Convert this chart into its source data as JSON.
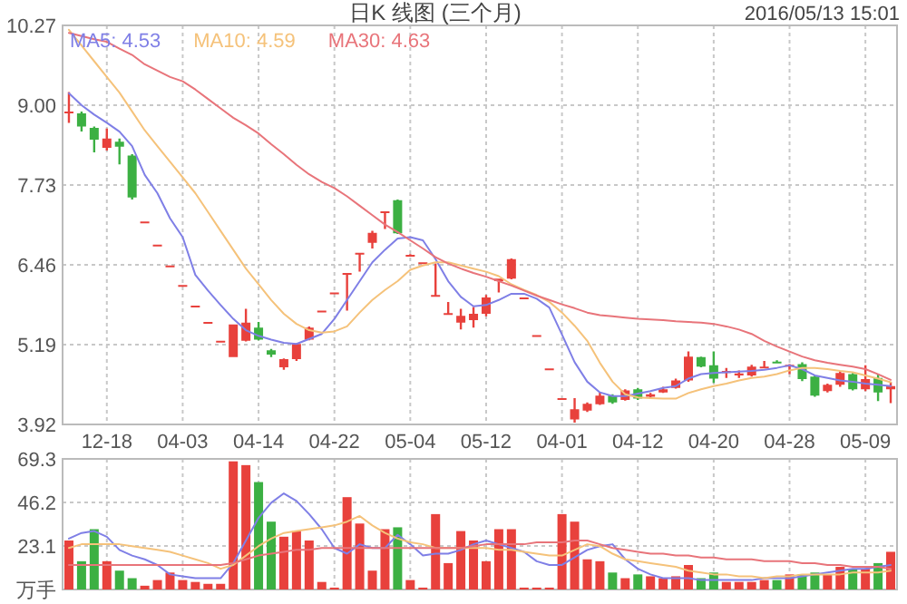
{
  "chart_data": [
    {
      "type": "candlestick",
      "title": "日K 线图 (三个月)",
      "annotations": [
        "2016/05/13 15:01"
      ],
      "categories": [
        null,
        null,
        null,
        "12-18",
        null,
        null,
        null,
        null,
        null,
        "04-03",
        null,
        null,
        null,
        null,
        null,
        "04-14",
        null,
        null,
        null,
        null,
        null,
        "04-22",
        null,
        null,
        null,
        null,
        null,
        "05-04",
        null,
        null,
        null,
        null,
        null,
        "05-12",
        null,
        null,
        null,
        null,
        null,
        "04-01",
        null,
        null,
        null,
        null,
        null,
        "04-12",
        null,
        null,
        null,
        null,
        null,
        "04-20",
        null,
        null,
        null,
        null,
        null,
        "04-28",
        null,
        null,
        null,
        null,
        null,
        "05-09",
        null,
        null
      ],
      "ohlc": [
        [
          8.88,
          9.21,
          8.72,
          8.9
        ],
        [
          8.87,
          8.9,
          8.58,
          8.66
        ],
        [
          8.64,
          8.66,
          8.25,
          8.45
        ],
        [
          8.32,
          8.63,
          8.28,
          8.47
        ],
        [
          8.42,
          8.47,
          8.06,
          8.34
        ],
        [
          8.2,
          8.22,
          7.5,
          7.53
        ],
        [
          7.15,
          7.15,
          7.15,
          7.15
        ],
        [
          6.78,
          6.78,
          6.78,
          6.78
        ],
        [
          6.45,
          6.45,
          6.45,
          6.45
        ],
        [
          6.14,
          6.14,
          6.14,
          6.14
        ],
        [
          5.81,
          5.81,
          5.81,
          5.81
        ],
        [
          5.55,
          5.55,
          5.55,
          5.55
        ],
        [
          5.25,
          5.25,
          5.25,
          5.25
        ],
        [
          4.99,
          5.51,
          4.99,
          5.51
        ],
        [
          5.25,
          5.76,
          5.24,
          5.54
        ],
        [
          5.46,
          5.55,
          5.26,
          5.27
        ],
        [
          5.1,
          5.12,
          4.99,
          5.03
        ],
        [
          4.83,
          4.97,
          4.79,
          4.96
        ],
        [
          4.96,
          5.21,
          4.93,
          5.2
        ],
        [
          5.27,
          5.48,
          5.26,
          5.46
        ],
        [
          5.73,
          5.73,
          5.73,
          5.73
        ],
        [
          6.02,
          6.02,
          6.02,
          6.02
        ],
        [
          6.31,
          6.33,
          5.73,
          6.33
        ],
        [
          6.63,
          6.65,
          6.35,
          6.65
        ],
        [
          6.81,
          7.0,
          6.72,
          6.97
        ],
        [
          7.3,
          7.31,
          7.03,
          7.31
        ],
        [
          7.49,
          7.5,
          6.95,
          6.96
        ],
        [
          6.62,
          6.63,
          6.6,
          6.62
        ],
        [
          6.5,
          6.5,
          6.5,
          6.5
        ],
        [
          5.97,
          6.48,
          5.97,
          5.98
        ],
        [
          5.68,
          5.87,
          5.68,
          5.69
        ],
        [
          5.54,
          5.76,
          5.43,
          5.65
        ],
        [
          5.58,
          5.79,
          5.46,
          5.68
        ],
        [
          5.68,
          5.98,
          5.64,
          5.94
        ],
        [
          6.2,
          6.24,
          6.02,
          6.24
        ],
        [
          6.24,
          6.56,
          6.23,
          6.55
        ],
        [
          5.94,
          5.94,
          5.94,
          5.94
        ],
        [
          5.34,
          5.34,
          5.34,
          5.34
        ],
        [
          4.81,
          4.81,
          4.81,
          4.81
        ],
        [
          4.34,
          4.34,
          4.34,
          4.34
        ],
        [
          4.0,
          4.34,
          3.95,
          4.16
        ],
        [
          4.14,
          4.27,
          4.12,
          4.25
        ],
        [
          4.24,
          4.44,
          4.23,
          4.38
        ],
        [
          4.38,
          4.4,
          4.25,
          4.27
        ],
        [
          4.31,
          4.48,
          4.3,
          4.46
        ],
        [
          4.48,
          4.5,
          4.31,
          4.33
        ],
        [
          4.36,
          4.42,
          4.34,
          4.4
        ],
        [
          4.43,
          4.52,
          4.42,
          4.48
        ],
        [
          4.5,
          4.65,
          4.49,
          4.62
        ],
        [
          4.62,
          5.08,
          4.6,
          5.0
        ],
        [
          4.99,
          5.0,
          4.83,
          4.84
        ],
        [
          4.86,
          5.08,
          4.58,
          4.65
        ],
        [
          4.74,
          4.82,
          4.66,
          4.77
        ],
        [
          4.7,
          4.78,
          4.66,
          4.73
        ],
        [
          4.7,
          4.87,
          4.68,
          4.84
        ],
        [
          4.83,
          4.93,
          4.83,
          4.84
        ],
        [
          4.92,
          4.94,
          4.89,
          4.9
        ],
        [
          4.86,
          4.88,
          4.72,
          4.87
        ],
        [
          4.88,
          4.91,
          4.61,
          4.64
        ],
        [
          4.68,
          4.7,
          4.36,
          4.38
        ],
        [
          4.45,
          4.57,
          4.43,
          4.55
        ],
        [
          4.55,
          4.77,
          4.52,
          4.74
        ],
        [
          4.72,
          4.74,
          4.46,
          4.48
        ],
        [
          4.48,
          4.86,
          4.45,
          4.64
        ],
        [
          4.66,
          4.72,
          4.29,
          4.43
        ],
        [
          4.48,
          4.6,
          4.26,
          4.53
        ]
      ],
      "colors": [
        "#e8413c",
        "#3cb043",
        "#3cb043",
        "#e8413c",
        "#3cb043",
        "#3cb043",
        "#e8413c",
        "#e8413c",
        "#e8413c",
        "#e8413c",
        "#e8413c",
        "#e8413c",
        "#e8413c",
        "#e8413c",
        "#e8413c",
        "#3cb043",
        "#3cb043",
        "#e8413c",
        "#e8413c",
        "#e8413c",
        "#e8413c",
        "#e8413c",
        "#e8413c",
        "#e8413c",
        "#e8413c",
        "#e8413c",
        "#3cb043",
        "#e8413c",
        "#e8413c",
        "#e8413c",
        "#e8413c",
        "#e8413c",
        "#e8413c",
        "#e8413c",
        "#e8413c",
        "#e8413c",
        "#e8413c",
        "#e8413c",
        "#e8413c",
        "#e8413c",
        "#e8413c",
        "#e8413c",
        "#e8413c",
        "#3cb043",
        "#e8413c",
        "#3cb043",
        "#e8413c",
        "#e8413c",
        "#e8413c",
        "#e8413c",
        "#3cb043",
        "#3cb043",
        "#e8413c",
        "#e8413c",
        "#e8413c",
        "#e8413c",
        "#3cb043",
        "#e8413c",
        "#3cb043",
        "#3cb043",
        "#e8413c",
        "#e8413c",
        "#3cb043",
        "#e8413c",
        "#3cb043",
        "#e8413c"
      ],
      "series": [
        {
          "type": "line",
          "name": "MA5: 4.53",
          "color": "#7f7fe6",
          "values": [
            9.19,
            9.0,
            8.85,
            8.72,
            8.58,
            8.35,
            7.89,
            7.6,
            7.2,
            6.9,
            6.3,
            6.05,
            5.82,
            5.6,
            5.42,
            5.33,
            5.27,
            5.22,
            5.2,
            5.28,
            5.36,
            5.6,
            5.9,
            6.2,
            6.5,
            6.7,
            6.88,
            6.9,
            6.85,
            6.55,
            6.2,
            5.95,
            5.8,
            5.82,
            5.9,
            6.0,
            6.0,
            5.92,
            5.78,
            5.35,
            4.91,
            4.6,
            4.43,
            4.37,
            4.37,
            4.41,
            4.45,
            4.5,
            4.53,
            4.65,
            4.72,
            4.74,
            4.75,
            4.76,
            4.77,
            4.79,
            4.82,
            4.86,
            4.8,
            4.7,
            4.66,
            4.62,
            4.6,
            4.57,
            4.55,
            4.53
          ]
        },
        {
          "type": "line",
          "name": "MA10: 4.59",
          "color": "#f5c27a",
          "values": [
            10.2,
            9.95,
            9.7,
            9.45,
            9.2,
            8.9,
            8.6,
            8.35,
            8.1,
            7.85,
            7.6,
            7.3,
            7.0,
            6.7,
            6.4,
            6.15,
            5.9,
            5.68,
            5.52,
            5.42,
            5.38,
            5.4,
            5.48,
            5.7,
            5.9,
            6.06,
            6.2,
            6.38,
            6.45,
            6.5,
            6.5,
            6.45,
            6.4,
            6.35,
            6.28,
            6.15,
            6.06,
            5.98,
            5.87,
            5.7,
            5.49,
            5.25,
            4.9,
            4.6,
            4.4,
            4.35,
            4.34,
            4.33,
            4.33,
            4.42,
            4.48,
            4.53,
            4.57,
            4.62,
            4.66,
            4.68,
            4.72,
            4.78,
            4.82,
            4.82,
            4.8,
            4.77,
            4.75,
            4.7,
            4.65,
            4.59
          ]
        },
        {
          "type": "line",
          "name": "MA30: 4.63",
          "color": "#e8747a",
          "values": [
            10.15,
            10.1,
            10.05,
            10.01,
            9.9,
            9.8,
            9.65,
            9.55,
            9.45,
            9.38,
            9.25,
            9.1,
            8.95,
            8.8,
            8.68,
            8.55,
            8.38,
            8.22,
            8.05,
            7.9,
            7.78,
            7.68,
            7.55,
            7.4,
            7.25,
            7.1,
            6.98,
            6.85,
            6.72,
            6.58,
            6.48,
            6.4,
            6.33,
            6.27,
            6.2,
            6.13,
            6.05,
            5.97,
            5.9,
            5.83,
            5.77,
            5.7,
            5.66,
            5.64,
            5.62,
            5.6,
            5.59,
            5.58,
            5.56,
            5.55,
            5.54,
            5.52,
            5.48,
            5.43,
            5.36,
            5.25,
            5.16,
            5.08,
            5.0,
            4.94,
            4.9,
            4.87,
            4.84,
            4.8,
            4.72,
            4.63
          ]
        }
      ],
      "ylim": [
        3.92,
        10.27
      ],
      "yticks": [
        3.92,
        5.19,
        6.46,
        7.73,
        {
          "value": 9,
          "label": "9.00"
        },
        10.27
      ],
      "grid": true,
      "legend": "top left"
    },
    {
      "type": "bar",
      "tick_labels": "y",
      "categories": [
        null,
        null,
        null,
        null,
        null,
        null,
        null,
        null,
        null,
        null,
        null,
        null,
        null,
        null,
        null,
        null,
        null,
        null,
        null,
        null,
        null,
        null,
        null,
        null,
        null,
        null,
        null,
        null,
        null,
        null,
        null,
        null,
        null,
        null,
        null,
        null,
        null,
        null,
        null,
        null,
        null,
        null,
        null,
        null,
        null,
        null,
        null,
        null,
        null,
        null,
        null,
        null,
        null,
        null,
        null,
        null,
        null,
        null,
        null,
        null,
        null,
        null,
        null,
        null,
        null,
        null
      ],
      "values": [
        26,
        15,
        32,
        15,
        10,
        6,
        2,
        5,
        9,
        5,
        4,
        3,
        3,
        68,
        66,
        57,
        36,
        28,
        31,
        26,
        4,
        1,
        49,
        35,
        10,
        32,
        33,
        5,
        1,
        40,
        14,
        31,
        26,
        15,
        32,
        32,
        1,
        1,
        1,
        40,
        36,
        16,
        15,
        9,
        6,
        8,
        7,
        6,
        7,
        13,
        6,
        9,
        4,
        4,
        4,
        5,
        5,
        8,
        8,
        9,
        8,
        12,
        11,
        11,
        14,
        20
      ],
      "colors": [
        "#e8413c",
        "#3cb043",
        "#3cb043",
        "#e8413c",
        "#3cb043",
        "#3cb043",
        "#e8413c",
        "#e8413c",
        "#e8413c",
        "#e8413c",
        "#e8413c",
        "#e8413c",
        "#e8413c",
        "#e8413c",
        "#e8413c",
        "#3cb043",
        "#3cb043",
        "#e8413c",
        "#e8413c",
        "#e8413c",
        "#e8413c",
        "#e8413c",
        "#e8413c",
        "#e8413c",
        "#e8413c",
        "#e8413c",
        "#3cb043",
        "#e8413c",
        "#e8413c",
        "#e8413c",
        "#e8413c",
        "#e8413c",
        "#e8413c",
        "#e8413c",
        "#e8413c",
        "#e8413c",
        "#e8413c",
        "#e8413c",
        "#e8413c",
        "#e8413c",
        "#e8413c",
        "#e8413c",
        "#e8413c",
        "#3cb043",
        "#e8413c",
        "#3cb043",
        "#e8413c",
        "#e8413c",
        "#e8413c",
        "#e8413c",
        "#3cb043",
        "#3cb043",
        "#e8413c",
        "#e8413c",
        "#e8413c",
        "#e8413c",
        "#3cb043",
        "#e8413c",
        "#3cb043",
        "#3cb043",
        "#e8413c",
        "#e8413c",
        "#3cb043",
        "#e8413c",
        "#3cb043",
        "#e8413c"
      ],
      "series": [
        {
          "type": "line",
          "color": "#7f7fe6",
          "values": [
            27,
            30,
            31,
            28,
            21,
            18,
            16,
            13,
            8,
            7,
            6,
            6,
            6,
            14,
            26,
            38,
            46,
            51,
            47,
            40,
            32,
            22,
            19,
            24,
            22,
            22,
            29,
            24,
            18,
            19,
            19,
            21,
            24,
            26,
            24,
            22,
            20,
            15,
            13,
            13,
            17,
            21,
            23,
            24,
            16,
            11,
            8,
            6,
            6,
            6,
            5,
            5,
            5,
            5,
            5,
            6,
            6,
            6,
            7,
            8,
            9,
            10,
            11,
            11,
            12,
            13
          ]
        },
        {
          "type": "line",
          "color": "#f5c27a",
          "values": [
            22,
            24,
            24,
            24,
            24,
            23,
            22,
            21,
            20,
            18,
            16,
            14,
            11,
            13,
            18,
            23,
            27,
            30,
            31,
            32,
            33,
            34,
            36,
            39,
            34,
            30,
            27,
            25,
            24,
            22,
            22,
            22,
            22,
            22,
            21,
            21,
            20,
            19,
            18,
            18,
            21,
            24,
            23,
            19,
            16,
            15,
            14,
            13,
            12,
            10,
            9,
            8,
            8,
            7,
            7,
            6,
            7,
            7,
            8,
            8,
            8,
            8,
            9,
            9,
            9,
            10
          ]
        },
        {
          "type": "line",
          "color": "#e8747a",
          "values": [
            13,
            13,
            13,
            13,
            13,
            13,
            13,
            13,
            13,
            13,
            13,
            13,
            13,
            14,
            16,
            18,
            19,
            20,
            21,
            21,
            22,
            22,
            22,
            22,
            22,
            22,
            22,
            22,
            22,
            22,
            22,
            22,
            23,
            24,
            24,
            24,
            24,
            25,
            25,
            25,
            26,
            26,
            24,
            22,
            21,
            20,
            19,
            19,
            18,
            18,
            17,
            17,
            16,
            16,
            16,
            15,
            15,
            15,
            14,
            14,
            13,
            13,
            12,
            12,
            12,
            11
          ]
        }
      ],
      "ylim": [
        0,
        69.3
      ],
      "yticks": [
        {
          "value": 0,
          "label": "万手"
        },
        23.1,
        46.2,
        69.3
      ],
      "grid": true
    }
  ]
}
